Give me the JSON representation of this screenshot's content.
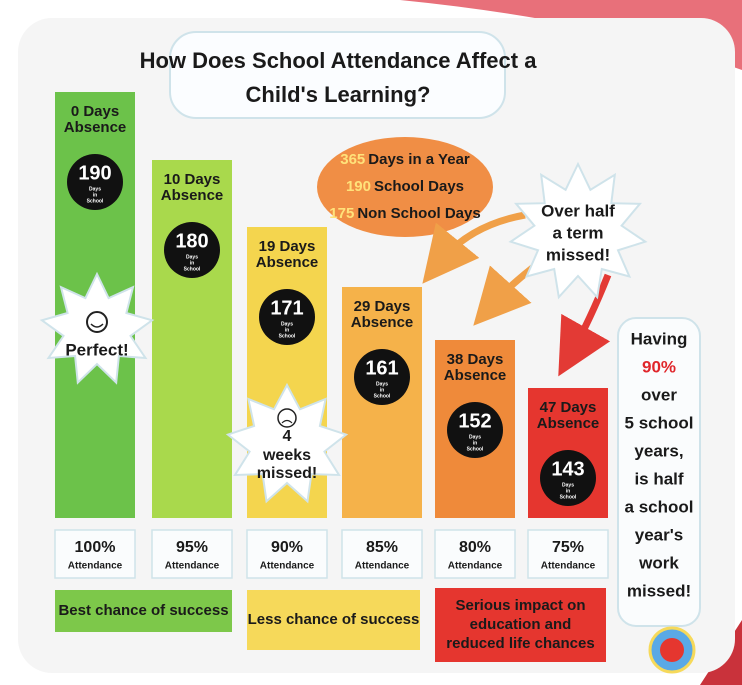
{
  "title": [
    "How Does School Attendance Affect a",
    "Child's Learning?"
  ],
  "info": [
    {
      "number": "365",
      "text": "Days in a Year"
    },
    {
      "number": "190",
      "text": "School Days"
    },
    {
      "number": "175",
      "text": "Non School Days"
    }
  ],
  "callout": [
    "Over half",
    "a term",
    "missed!"
  ],
  "columns": [
    {
      "absence": [
        "0 Days",
        "Absence"
      ],
      "days": "190",
      "caption": [
        "Days",
        "in",
        "School"
      ],
      "percent": "100%",
      "label": "Attendance"
    },
    {
      "absence": [
        "10 Days",
        "Absence"
      ],
      "days": "180",
      "caption": [
        "Days",
        "in",
        "School"
      ],
      "percent": "95%",
      "label": "Attendance"
    },
    {
      "absence": [
        "19 Days",
        "Absence"
      ],
      "days": "171",
      "caption": [
        "Days",
        "in",
        "School"
      ],
      "percent": "90%",
      "label": "Attendance"
    },
    {
      "absence": [
        "29 Days",
        "Absence"
      ],
      "days": "161",
      "caption": [
        "Days",
        "in",
        "School"
      ],
      "percent": "85%",
      "label": "Attendance"
    },
    {
      "absence": [
        "38 Days",
        "Absence"
      ],
      "days": "152",
      "caption": [
        "Days",
        "in",
        "School"
      ],
      "percent": "80%",
      "label": "Attendance"
    },
    {
      "absence": [
        "47 Days",
        "Absence"
      ],
      "days": "143",
      "caption": [
        "Days",
        "in",
        "School"
      ],
      "percent": "75%",
      "label": "Attendance"
    }
  ],
  "perfect": "Perfect!",
  "weeks": [
    "4",
    "weeks",
    "missed!"
  ],
  "bands": [
    {
      "lines": [
        "Best chance of success"
      ]
    },
    {
      "lines": [
        "Less chance of success"
      ]
    },
    {
      "lines": [
        "Serious impact on",
        "education and",
        "reduced life chances"
      ]
    }
  ],
  "side_note": [
    "Having",
    "90%",
    "over",
    "5 school",
    "years,",
    "is half",
    "a school",
    "year's",
    "work",
    "missed!"
  ]
}
